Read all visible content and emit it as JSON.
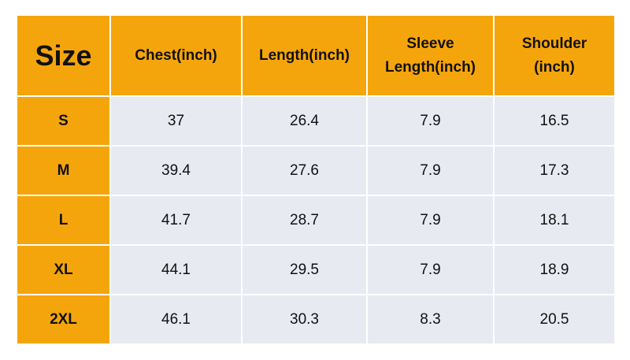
{
  "table": {
    "header": [
      [
        "Size"
      ],
      [
        "Chest(inch)"
      ],
      [
        "Length(inch)"
      ],
      [
        "Sleeve",
        "Length(inch)"
      ],
      [
        "Shoulder",
        "(inch)"
      ]
    ],
    "rows": [
      [
        "S",
        37,
        26.4,
        7.9,
        16.5
      ],
      [
        "M",
        39.4,
        27.6,
        7.9,
        17.3
      ],
      [
        "L",
        41.7,
        28.7,
        7.9,
        18.1
      ],
      [
        "XL",
        44.1,
        29.5,
        7.9,
        18.9
      ],
      [
        "2XL",
        46.1,
        30.3,
        8.3,
        20.5
      ]
    ]
  }
}
